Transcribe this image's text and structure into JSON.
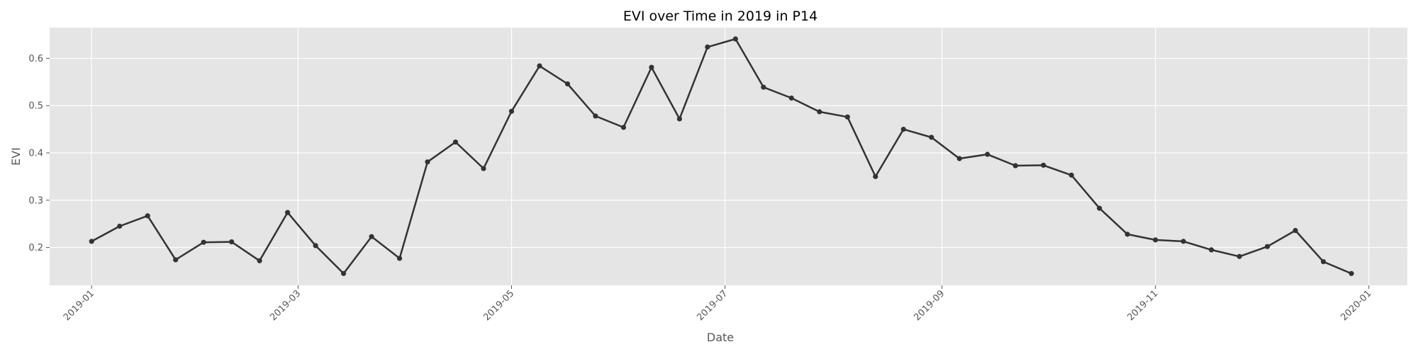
{
  "chart_data": {
    "type": "line",
    "title": "EVI over Time in 2019 in P14",
    "xlabel": "Date",
    "ylabel": "EVI",
    "xlim": [
      "2018-12-20",
      "2020-01-12"
    ],
    "ylim": [
      0.12,
      0.665
    ],
    "x_ticks": [
      "2019-01",
      "2019-03",
      "2019-05",
      "2019-07",
      "2019-09",
      "2019-11",
      "2020-01"
    ],
    "y_ticks": [
      "0.2",
      "0.3",
      "0.4",
      "0.5",
      "0.6"
    ],
    "grid": true,
    "background_color": "#e5e5e5",
    "line_color": "#333333",
    "series": [
      {
        "x": [
          "2019-01-01",
          "2019-01-09",
          "2019-01-17",
          "2019-01-25",
          "2019-02-02",
          "2019-02-10",
          "2019-02-18",
          "2019-02-26",
          "2019-03-06",
          "2019-03-14",
          "2019-03-22",
          "2019-03-30",
          "2019-04-07",
          "2019-04-15",
          "2019-04-23",
          "2019-05-01",
          "2019-05-09",
          "2019-05-17",
          "2019-05-25",
          "2019-06-02",
          "2019-06-10",
          "2019-06-18",
          "2019-06-26",
          "2019-07-04",
          "2019-07-12",
          "2019-07-20",
          "2019-07-28",
          "2019-08-05",
          "2019-08-13",
          "2019-08-21",
          "2019-08-29",
          "2019-09-06",
          "2019-09-14",
          "2019-09-22",
          "2019-09-30",
          "2019-10-08",
          "2019-10-16",
          "2019-10-24",
          "2019-11-01",
          "2019-11-09",
          "2019-11-17",
          "2019-11-25",
          "2019-12-03",
          "2019-12-11",
          "2019-12-19",
          "2019-12-27"
        ],
        "y": [
          0.213,
          0.245,
          0.267,
          0.174,
          0.211,
          0.212,
          0.172,
          0.274,
          0.204,
          0.145,
          0.223,
          0.177,
          0.381,
          0.423,
          0.367,
          0.488,
          0.584,
          0.546,
          0.478,
          0.454,
          0.581,
          0.472,
          0.624,
          0.641,
          0.539,
          0.516,
          0.487,
          0.476,
          0.35,
          0.45,
          0.433,
          0.388,
          0.397,
          0.373,
          0.374,
          0.353,
          0.283,
          0.228,
          0.216,
          0.213,
          0.195,
          0.181,
          0.202,
          0.236,
          0.17,
          0.145
        ]
      }
    ]
  }
}
